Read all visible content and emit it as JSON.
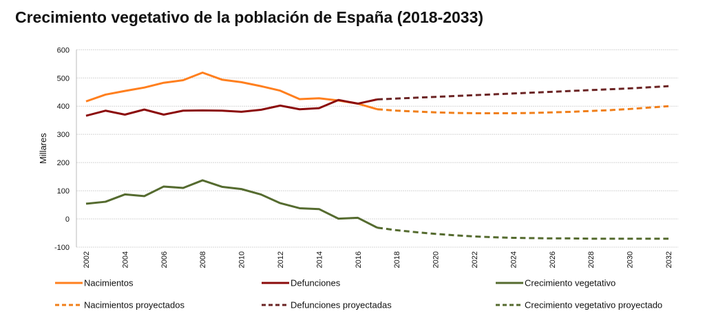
{
  "chart_data": {
    "type": "line",
    "title": "Crecimiento vegetativo de la población de España (2018-2033)",
    "xlabel": "",
    "ylabel": "Millares",
    "ylim": [
      -100,
      600
    ],
    "yticks": [
      -100,
      0,
      100,
      200,
      300,
      400,
      500,
      600
    ],
    "xticks": [
      2002,
      2004,
      2006,
      2008,
      2010,
      2012,
      2014,
      2016,
      2018,
      2020,
      2022,
      2024,
      2026,
      2028,
      2030,
      2032
    ],
    "grid": true,
    "legend_position": "bottom",
    "series": [
      {
        "name": "Nacimientos",
        "color": "#FF7F1E",
        "style": "solid",
        "x": [
          2002,
          2003,
          2004,
          2005,
          2006,
          2007,
          2008,
          2009,
          2010,
          2011,
          2012,
          2013,
          2014,
          2015,
          2016,
          2017
        ],
        "values": [
          417,
          441,
          454,
          466,
          483,
          492,
          519,
          494,
          485,
          471,
          455,
          425,
          428,
          420,
          409,
          389
        ]
      },
      {
        "name": "Defunciones",
        "color": "#8B0A0A",
        "style": "solid",
        "x": [
          2002,
          2003,
          2004,
          2005,
          2006,
          2007,
          2008,
          2009,
          2010,
          2011,
          2012,
          2013,
          2014,
          2015,
          2016,
          2017
        ],
        "values": [
          366,
          384,
          370,
          388,
          370,
          384,
          385,
          384,
          380,
          387,
          402,
          389,
          393,
          422,
          409,
          424
        ]
      },
      {
        "name": "Crecimiento vegetativo",
        "color": "#556B2F",
        "style": "solid",
        "x": [
          2002,
          2003,
          2004,
          2005,
          2006,
          2007,
          2008,
          2009,
          2010,
          2011,
          2012,
          2013,
          2014,
          2015,
          2016,
          2017
        ],
        "values": [
          54,
          61,
          87,
          81,
          115,
          110,
          137,
          114,
          106,
          87,
          56,
          38,
          35,
          1,
          4,
          -31
        ]
      },
      {
        "name": "Nacimientos proyectados",
        "color": "#F07F1A",
        "style": "dashed",
        "x": [
          2017,
          2018,
          2019,
          2020,
          2021,
          2022,
          2023,
          2024,
          2025,
          2026,
          2027,
          2028,
          2029,
          2030,
          2031,
          2032
        ],
        "values": [
          389,
          384,
          381,
          378,
          376,
          375,
          375,
          375,
          376,
          378,
          380,
          383,
          386,
          390,
          395,
          400
        ]
      },
      {
        "name": "Defunciones proyectadas",
        "color": "#6B2424",
        "style": "dashed",
        "x": [
          2017,
          2018,
          2019,
          2020,
          2021,
          2022,
          2023,
          2024,
          2025,
          2026,
          2027,
          2028,
          2029,
          2030,
          2031,
          2032
        ],
        "values": [
          424,
          427,
          430,
          433,
          436,
          439,
          442,
          445,
          448,
          451,
          454,
          457,
          460,
          463,
          467,
          471
        ]
      },
      {
        "name": "Crecimiento vegetativo proyectado",
        "color": "#556B2F",
        "style": "dashed",
        "x": [
          2017,
          2018,
          2019,
          2020,
          2021,
          2022,
          2023,
          2024,
          2025,
          2026,
          2027,
          2028,
          2029,
          2030,
          2031,
          2032
        ],
        "values": [
          -31,
          -40,
          -47,
          -53,
          -58,
          -62,
          -65,
          -67,
          -68,
          -69,
          -69,
          -70,
          -70,
          -70,
          -70,
          -70
        ]
      }
    ]
  }
}
